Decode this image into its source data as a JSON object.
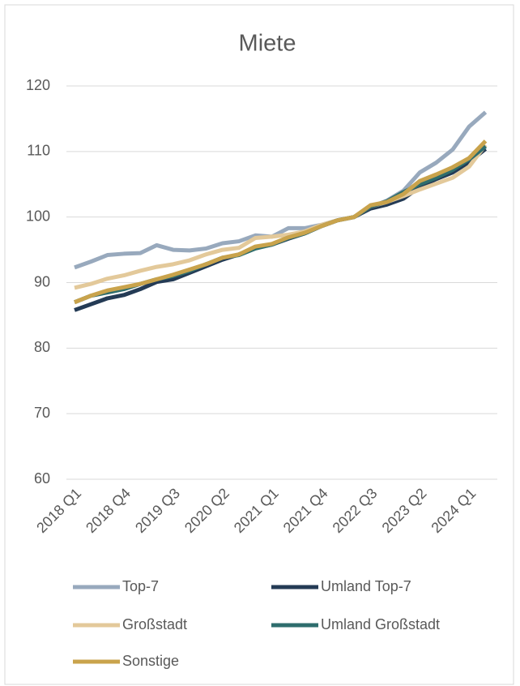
{
  "chart_data": {
    "type": "line",
    "title": "Miete",
    "categories": [
      "2018 Q1",
      null,
      null,
      "2018 Q4",
      null,
      null,
      "2019 Q3",
      null,
      null,
      "2020 Q2",
      null,
      null,
      "2021 Q1",
      null,
      null,
      "2021 Q4",
      null,
      null,
      "2022 Q3",
      null,
      null,
      "2023 Q2",
      null,
      null,
      "2024 Q1",
      null
    ],
    "series": [
      {
        "name": "Top-7",
        "color": "#98a9bd",
        "values": [
          92.3,
          93.2,
          94.2,
          94.4,
          94.5,
          95.7,
          95.0,
          94.9,
          95.2,
          96.0,
          96.3,
          97.2,
          97.0,
          98.3,
          98.3,
          98.8,
          99.5,
          100.0,
          101.5,
          102.5,
          104.0,
          106.8,
          108.3,
          110.3,
          113.8,
          116.0
        ]
      },
      {
        "name": "Umland Top-7",
        "color": "#243b55",
        "values": [
          85.8,
          86.7,
          87.6,
          88.1,
          89.0,
          90.1,
          90.5,
          91.5,
          92.5,
          93.5,
          94.3,
          95.3,
          95.8,
          96.7,
          97.5,
          98.6,
          99.5,
          100.0,
          101.3,
          101.9,
          102.8,
          104.6,
          105.8,
          106.8,
          108.4,
          110.4
        ]
      },
      {
        "name": "Großstadt",
        "color": "#e3c99a",
        "values": [
          89.2,
          89.8,
          90.6,
          91.1,
          91.8,
          92.4,
          92.8,
          93.4,
          94.3,
          95.0,
          95.3,
          96.8,
          97.0,
          97.3,
          97.8,
          98.8,
          99.5,
          100.0,
          101.6,
          102.3,
          103.2,
          104.2,
          105.1,
          106.0,
          107.7,
          111.0
        ]
      },
      {
        "name": "Umland Großstadt",
        "color": "#2e6d6d",
        "values": [
          87.0,
          88.0,
          88.5,
          89.0,
          89.8,
          90.5,
          91.0,
          91.8,
          92.8,
          93.8,
          94.2,
          95.2,
          95.8,
          96.8,
          97.5,
          98.6,
          99.5,
          100.0,
          101.6,
          102.4,
          103.8,
          105.0,
          106.0,
          107.2,
          108.8,
          110.8
        ]
      },
      {
        "name": "Sonstige",
        "color": "#c9a34c",
        "values": [
          87.0,
          88.0,
          88.8,
          89.3,
          89.8,
          90.5,
          91.2,
          92.0,
          92.8,
          93.8,
          94.3,
          95.5,
          95.9,
          96.9,
          97.6,
          98.6,
          99.5,
          100.0,
          101.8,
          102.3,
          103.5,
          105.5,
          106.5,
          107.6,
          109.0,
          111.6
        ]
      }
    ],
    "ylim": [
      60,
      120
    ],
    "yticks": [
      60,
      70,
      80,
      90,
      100,
      110,
      120
    ],
    "grid": true
  }
}
